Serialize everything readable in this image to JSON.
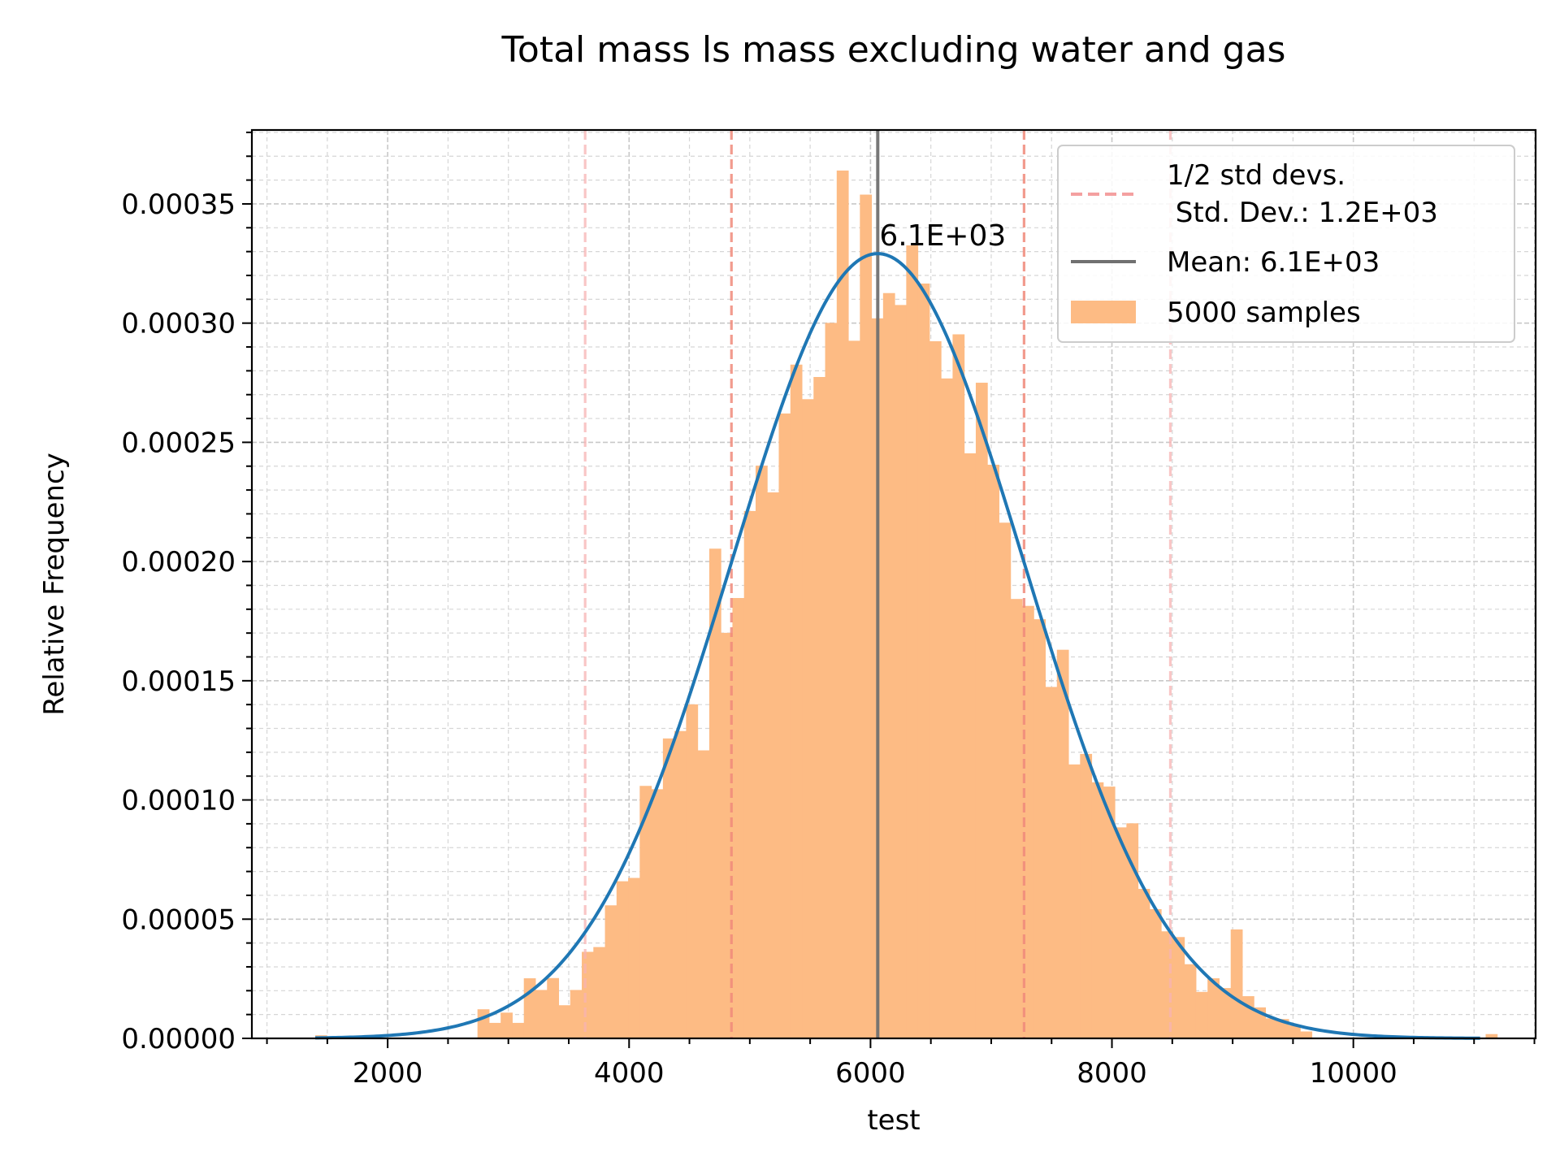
{
  "chart_data": {
    "type": "bar",
    "title": "Total mass  ls mass excluding water and gas",
    "xlabel": "test",
    "ylabel": "Relative Frequency",
    "xlim": [
      875,
      11510
    ],
    "ylim": [
      0,
      0.000381
    ],
    "xticks": [
      2000,
      4000,
      6000,
      8000,
      10000
    ],
    "xtick_labels": [
      "2000",
      "4000",
      "6000",
      "8000",
      "10000"
    ],
    "yticks": [
      0,
      5e-05,
      0.0001,
      0.00015,
      0.0002,
      0.00025,
      0.0003,
      0.00035
    ],
    "ytick_labels": [
      "0.00000",
      "0.00005",
      "0.00010",
      "0.00015",
      "0.00020",
      "0.00025",
      "0.00030",
      "0.00035"
    ],
    "grid": true,
    "legend_position": "top-right",
    "colors": {
      "histogram": "#fdbb84",
      "pdf_curve": "#1f77b4",
      "mean_line": "#707070",
      "std_lines": "#f4a0a0"
    },
    "histogram": {
      "name": "5000 samples",
      "bin_start": 1400,
      "bin_width": 96,
      "values": [
        1.3e-06,
        0,
        0,
        0,
        0,
        0,
        0,
        0,
        0,
        0,
        0,
        0,
        0,
        0,
        1.22e-05,
        6.5e-06,
        1.08e-05,
        6.5e-06,
        2.52e-05,
        2.03e-05,
        2.53e-05,
        1.39e-05,
        2.03e-05,
        3.63e-05,
        3.83e-05,
        5.58e-05,
        6.59e-05,
        6.73e-05,
        0.0001059,
        0.0001045,
        0.0001258,
        0.0001289,
        0.0001401,
        0.0001208,
        0.0002054,
        0.0001701,
        0.0001847,
        0.0002212,
        0.0002402,
        0.000229,
        0.0002621,
        0.0002826,
        0.0002681,
        0.0002774,
        0.0003001,
        0.000364,
        0.0002926,
        0.0003539,
        0.000302,
        0.0003126,
        0.0003076,
        0.0003326,
        0.0003166,
        0.0002924,
        0.0002768,
        0.0002953,
        0.0002454,
        0.000275,
        0.0002406,
        0.0002163,
        0.0001843,
        0.0001814,
        0.0001758,
        0.0001474,
        0.000163,
        0.0001149,
        0.0001193,
        0.0001074,
        0.0001056,
        8.85e-05,
        9.02e-05,
        6.27e-05,
        5.42e-05,
        4.49e-05,
        4.25e-05,
        3.11e-05,
        1.95e-05,
        2.52e-05,
        2.11e-05,
        4.57e-05,
        1.77e-05,
        1.3e-05,
        8.4e-06,
        8.1e-06,
        5.4e-06,
        2.9e-06,
        0,
        0,
        0,
        0,
        0,
        0,
        0,
        0,
        0,
        0,
        0,
        0,
        0,
        0,
        0,
        1.8e-06
      ]
    },
    "mean": 6060,
    "std_dev": 1212,
    "std_lines": [
      3636,
      4848,
      7272,
      8484
    ],
    "pdf_curve": {
      "mean": 6060,
      "std_dev": 1212,
      "x_range": [
        1400,
        11050
      ]
    },
    "annotation": "6.1E+03",
    "legend": [
      {
        "label_line1": "1/2 std devs.",
        "label_line2": " Std. Dev.: 1.2E+03",
        "style": "dashed"
      },
      {
        "label": "Mean: 6.1E+03",
        "style": "line"
      },
      {
        "label": "5000 samples",
        "style": "patch"
      }
    ]
  }
}
